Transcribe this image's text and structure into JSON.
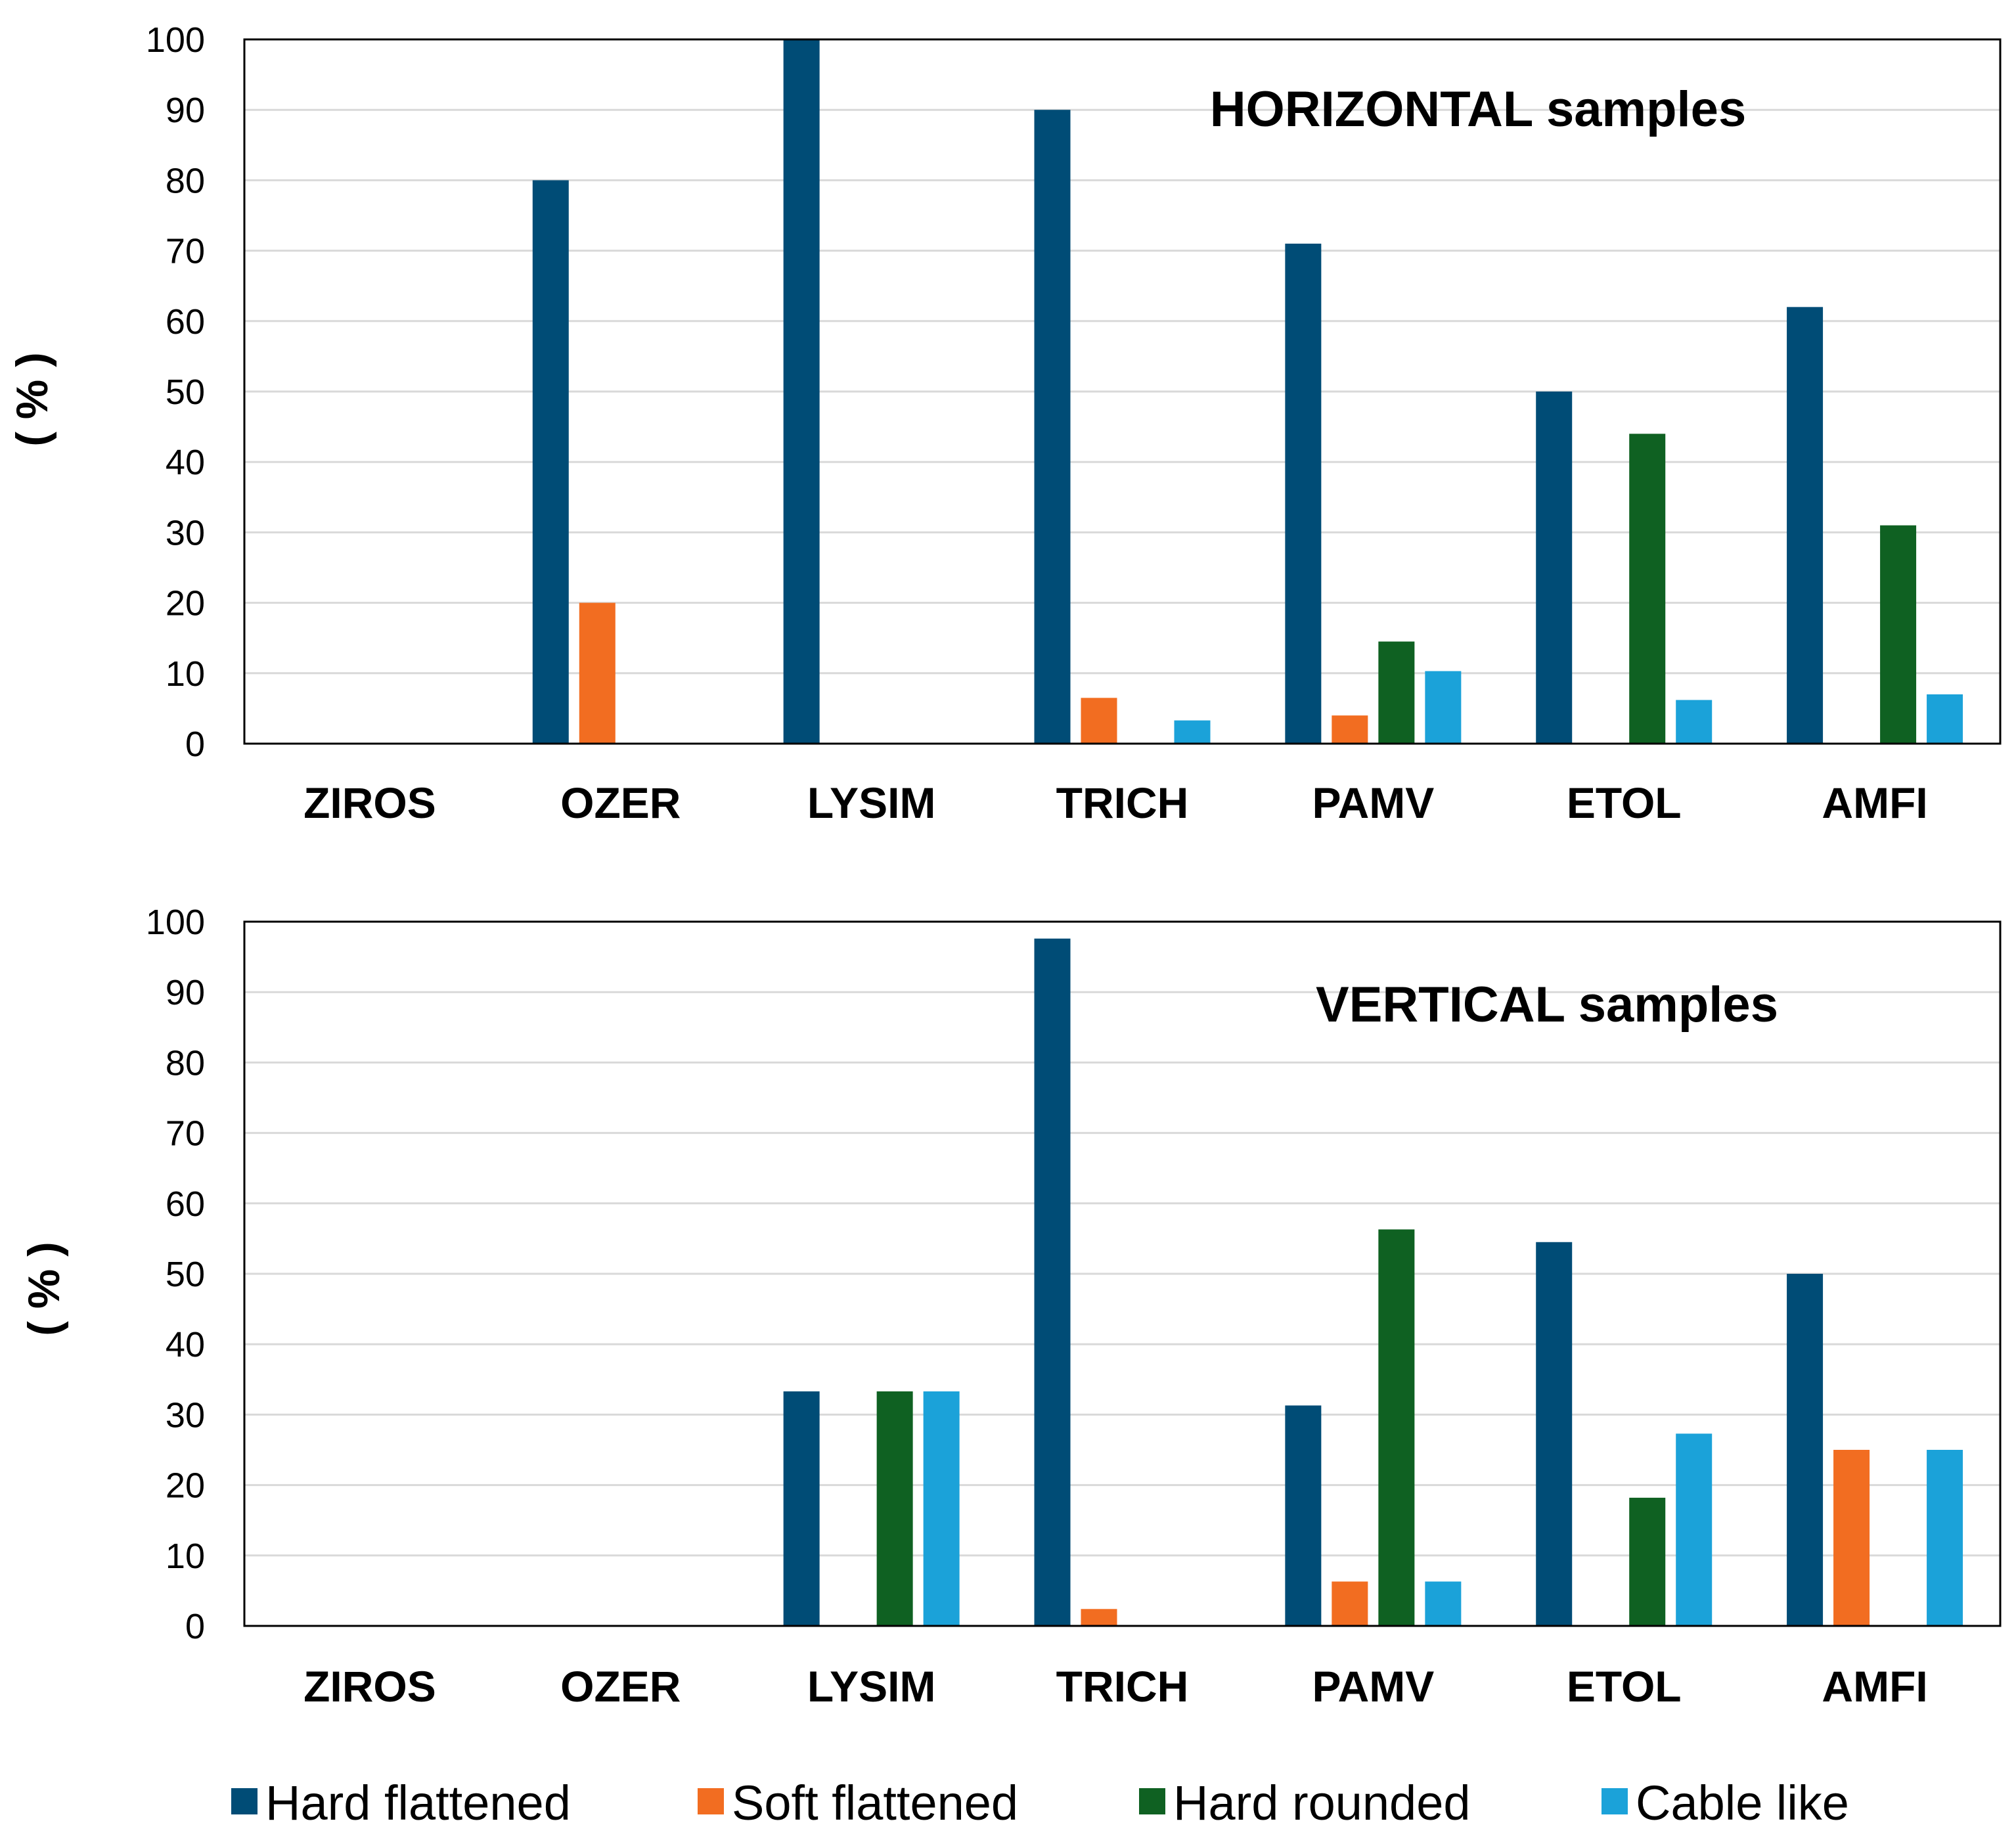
{
  "chart_data": [
    {
      "type": "bar",
      "title": "HORIZONTAL samples",
      "xlabel": "",
      "ylabel": "( % )",
      "ylim": [
        0,
        100
      ],
      "yticks": [
        "0",
        "10",
        "20",
        "30",
        "40",
        "50",
        "60",
        "70",
        "80",
        "90",
        "100"
      ],
      "grid": true,
      "categories": [
        "ZIROS",
        "OZER",
        "LYSIM",
        "TRICH",
        "PAMV",
        "ETOL",
        "AMFI"
      ],
      "series": [
        {
          "name": "Hard flattened",
          "values": [
            0,
            80,
            100,
            90,
            71,
            50,
            62
          ]
        },
        {
          "name": "Soft flattened",
          "values": [
            0,
            20,
            0,
            6.5,
            4,
            0,
            0
          ]
        },
        {
          "name": "Hard rounded",
          "values": [
            0,
            0,
            0,
            0,
            14.5,
            44,
            31
          ]
        },
        {
          "name": "Cable like",
          "values": [
            0,
            0,
            0,
            3.3,
            10.3,
            6.2,
            7
          ]
        }
      ]
    },
    {
      "type": "bar",
      "title": "VERTICAL samples",
      "xlabel": "",
      "ylabel": "( % )",
      "ylim": [
        0,
        100
      ],
      "yticks": [
        "0",
        "10",
        "20",
        "30",
        "40",
        "50",
        "60",
        "70",
        "80",
        "90",
        "100"
      ],
      "grid": true,
      "categories": [
        "ZIROS",
        "OZER",
        "LYSIM",
        "TRICH",
        "PAMV",
        "ETOL",
        "AMFI"
      ],
      "series": [
        {
          "name": "Hard flattened",
          "values": [
            0,
            0,
            33.3,
            97.6,
            31.3,
            54.5,
            50
          ]
        },
        {
          "name": "Soft flattened",
          "values": [
            0,
            0,
            0,
            2.4,
            6.3,
            0,
            25
          ]
        },
        {
          "name": "Hard rounded",
          "values": [
            0,
            0,
            33.3,
            0,
            56.3,
            18.2,
            0
          ]
        },
        {
          "name": "Cable like",
          "values": [
            0,
            0,
            33.3,
            0,
            6.3,
            27.3,
            25
          ]
        }
      ]
    }
  ],
  "legend": {
    "position": "bottom",
    "items": [
      {
        "label": "Hard flattened",
        "color": "#004c76"
      },
      {
        "label": "Soft flattened",
        "color": "#f26d21"
      },
      {
        "label": "Hard rounded",
        "color": "#0f6122"
      },
      {
        "label": "Cable like",
        "color": "#1ba2d9"
      }
    ]
  },
  "colors": {
    "gridline": "#d9d9d9",
    "frame": "#000000"
  }
}
